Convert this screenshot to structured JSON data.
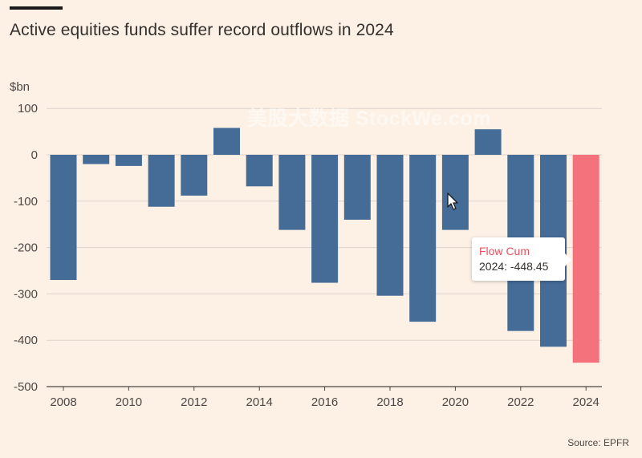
{
  "header": {
    "title": "Active equities funds suffer record outflows in 2024"
  },
  "footer": {
    "source": "Source: EPFR"
  },
  "watermark": {
    "text": "美股大数据 StockWe.com"
  },
  "tooltip": {
    "series": "Flow Cum",
    "label": "2024: -448.45"
  },
  "colors": {
    "bar": "#456c97",
    "highlight": "#f4727c",
    "background": "#fdf1e6",
    "grid": "#ddd3ca"
  },
  "chart_data": {
    "type": "bar",
    "unit_label": "$bn",
    "categories": [
      "2008",
      "2009",
      "2010",
      "2011",
      "2012",
      "2013",
      "2014",
      "2015",
      "2016",
      "2017",
      "2018",
      "2019",
      "2020",
      "2021",
      "2022",
      "2023",
      "2024"
    ],
    "series": [
      {
        "name": "Flow Cum",
        "values": [
          -270,
          -20,
          -24,
          -112,
          -88,
          58,
          -68,
          -162,
          -276,
          -140,
          -304,
          -360,
          -162,
          55,
          -380,
          -414,
          -448.45
        ]
      }
    ],
    "highlight_index": 16,
    "xticks": [
      "2008",
      "2010",
      "2012",
      "2014",
      "2016",
      "2018",
      "2020",
      "2022",
      "2024"
    ],
    "yticks": [
      100,
      0,
      -100,
      -200,
      -300,
      -400,
      -500
    ],
    "ylim": [
      -500,
      100
    ],
    "grid": true
  }
}
